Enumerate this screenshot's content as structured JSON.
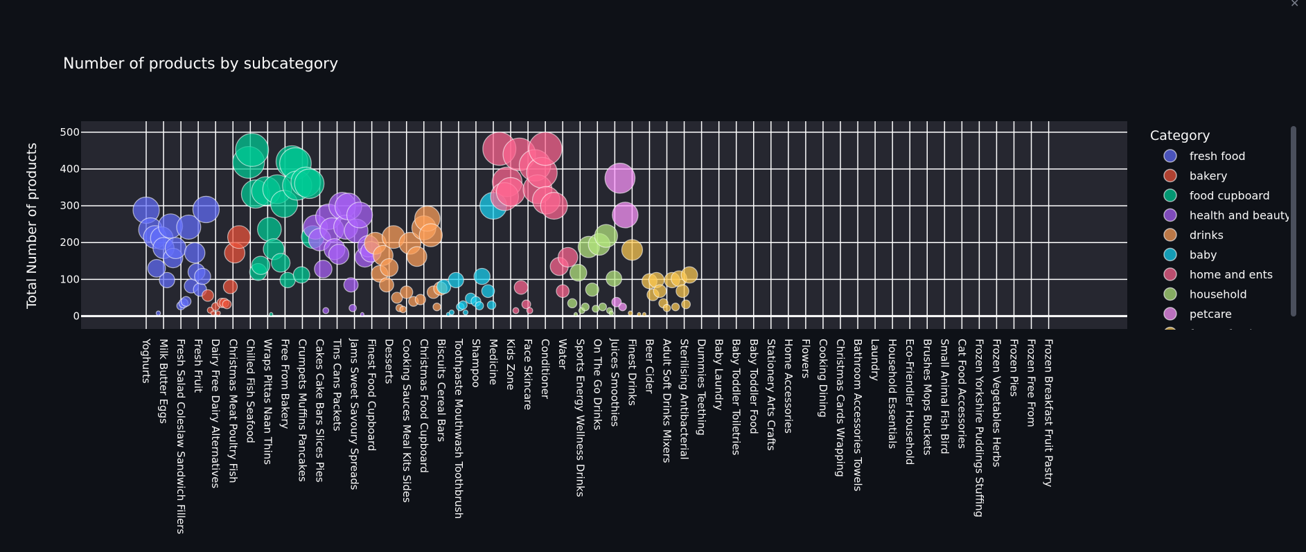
{
  "chart_data": {
    "type": "scatter",
    "title": "Number of products by subcategory",
    "ylabel": "Total Number of products",
    "xlabel": "",
    "ylim": [
      -35,
      530
    ],
    "yticks": [
      0,
      100,
      200,
      300,
      400,
      500
    ],
    "legend_title": "Category",
    "legend_position": "right",
    "grid": true,
    "categories": [
      "Yoghurts",
      "Milk Butter Eggs",
      "Fresh Salad Coleslaw Sandwich Fillers",
      "Fresh Fruit",
      "Dairy Free Dairy Alternatives",
      "Christmas Meat Poultry Fish",
      "Chilled Fish Seafood",
      "Wraps Pittas Naan Thins",
      "Free From Bakery",
      "Crumpets Muffins Pancakes",
      "Cakes Cake Bars Slices Pies",
      "Tins Cans Packets",
      "Jams Sweet Savoury Spreads",
      "Finest Food Cupboard",
      "Desserts",
      "Cooking Sauces Meal Kits Sides",
      "Christmas Food Cupboard",
      "Biscuits Cereal Bars",
      "Toothpaste Mouthwash Toothbrush",
      "Shampoo",
      "Medicine",
      "Kids Zone",
      "Face Skincare",
      "Conditioner",
      "Water",
      "Sports Energy Wellness Drinks",
      "On The Go Drinks",
      "Juices Smoothies",
      "Finest Drinks",
      "Beer Cider",
      "Adult Soft Drinks Mixers",
      "Sterilising Antibacterial",
      "Dummies Teething",
      "Baby Laundry",
      "Baby Toddler Toiletries",
      "Baby Toddler Food",
      "Stationery Arts Crafts",
      "Home Accessories",
      "Flowers",
      "Cooking Dining",
      "Christmas Cards Wrapping",
      "Bathroom Accessories Towels",
      "Laundry",
      "Household Essentials",
      "Eco-Friendler Household",
      "Brushes Mops Buckets",
      "Small Animal Fish Bird",
      "Cat Food Accessories",
      "Frozen Yorkshire Puddings Stuffing",
      "Frozen Vegetables Herbs",
      "Frozen Pies",
      "Frozen Free From",
      "Frozen Breakfast Fruit Pastry"
    ],
    "series": [
      {
        "name": "fresh food",
        "color": "#636efa",
        "points": [
          [
            0,
            288
          ],
          [
            0.25,
            235
          ],
          [
            0.5,
            215
          ],
          [
            0.7,
            8
          ],
          [
            0.9,
            212
          ],
          [
            1.0,
            185
          ],
          [
            1.2,
            98
          ],
          [
            1.4,
            245
          ],
          [
            1.55,
            158
          ],
          [
            1.7,
            185
          ],
          [
            2.0,
            28
          ],
          [
            2.15,
            35
          ],
          [
            2.3,
            40
          ],
          [
            2.45,
            242
          ],
          [
            2.6,
            82
          ],
          [
            2.8,
            172
          ],
          [
            2.9,
            120
          ],
          [
            3.1,
            72
          ],
          [
            3.25,
            108
          ],
          [
            3.45,
            290
          ],
          [
            0.6,
            130
          ]
        ]
      },
      {
        "name": "bakery",
        "color": "#ef553b",
        "points": [
          [
            3.55,
            56
          ],
          [
            3.7,
            16
          ],
          [
            3.85,
            8
          ],
          [
            4.0,
            26
          ],
          [
            4.15,
            8
          ],
          [
            4.35,
            36
          ],
          [
            4.5,
            36
          ],
          [
            4.65,
            32
          ],
          [
            4.85,
            80
          ],
          [
            5.1,
            172
          ],
          [
            5.35,
            215
          ]
        ]
      },
      {
        "name": "food cupboard",
        "color": "#00cc96",
        "points": [
          [
            5.9,
            418
          ],
          [
            6.1,
            452
          ],
          [
            6.3,
            332
          ],
          [
            6.45,
            120
          ],
          [
            6.6,
            138
          ],
          [
            6.9,
            340
          ],
          [
            7.1,
            236
          ],
          [
            7.2,
            5
          ],
          [
            7.35,
            182
          ],
          [
            7.55,
            345
          ],
          [
            7.75,
            145
          ],
          [
            7.95,
            305
          ],
          [
            8.15,
            98
          ],
          [
            8.4,
            420
          ],
          [
            8.6,
            415
          ],
          [
            8.7,
            355
          ],
          [
            8.95,
            112
          ],
          [
            9.2,
            365
          ],
          [
            9.4,
            360
          ],
          [
            9.6,
            215
          ]
        ]
      },
      {
        "name": "health and beauty",
        "color": "#ab63fa",
        "points": [
          [
            9.75,
            242
          ],
          [
            10.0,
            208
          ],
          [
            10.2,
            128
          ],
          [
            10.35,
            15
          ],
          [
            10.5,
            270
          ],
          [
            10.7,
            235
          ],
          [
            10.85,
            182
          ],
          [
            11.1,
            168
          ],
          [
            11.3,
            300
          ],
          [
            11.5,
            242
          ],
          [
            11.65,
            298
          ],
          [
            11.8,
            85
          ],
          [
            11.9,
            22
          ],
          [
            12.1,
            232
          ],
          [
            12.3,
            275
          ],
          [
            12.45,
            5
          ],
          [
            12.6,
            160
          ],
          [
            12.8,
            190
          ],
          [
            12.95,
            175
          ]
        ]
      },
      {
        "name": "drinks",
        "color": "#ffa15a",
        "points": [
          [
            13.2,
            198
          ],
          [
            13.45,
            115
          ],
          [
            13.65,
            165
          ],
          [
            13.85,
            85
          ],
          [
            14.0,
            132
          ],
          [
            14.25,
            215
          ],
          [
            14.45,
            50
          ],
          [
            14.6,
            22
          ],
          [
            14.8,
            18
          ],
          [
            15.0,
            65
          ],
          [
            15.2,
            198
          ],
          [
            15.4,
            40
          ],
          [
            15.6,
            162
          ],
          [
            15.8,
            45
          ],
          [
            16.0,
            240
          ],
          [
            16.2,
            265
          ],
          [
            16.4,
            220
          ],
          [
            16.55,
            65
          ],
          [
            16.75,
            25
          ],
          [
            16.95,
            75
          ]
        ]
      },
      {
        "name": "baby",
        "color": "#19d3f3",
        "points": [
          [
            17.15,
            80
          ],
          [
            17.4,
            5
          ],
          [
            17.6,
            10
          ],
          [
            17.85,
            98
          ],
          [
            18.1,
            25
          ],
          [
            18.25,
            30
          ],
          [
            18.4,
            10
          ],
          [
            18.7,
            48
          ],
          [
            19.0,
            40
          ],
          [
            19.2,
            28
          ],
          [
            19.35,
            108
          ],
          [
            19.7,
            68
          ],
          [
            19.9,
            30
          ],
          [
            20.0,
            300
          ]
        ]
      },
      {
        "name": "home and ents",
        "color": "#ff6692",
        "points": [
          [
            20.35,
            455
          ],
          [
            20.8,
            365
          ],
          [
            20.65,
            325
          ],
          [
            21.0,
            338
          ],
          [
            21.3,
            15
          ],
          [
            21.6,
            78
          ],
          [
            21.5,
            440
          ],
          [
            21.9,
            32
          ],
          [
            22.1,
            15
          ],
          [
            22.4,
            410
          ],
          [
            22.55,
            345
          ],
          [
            22.8,
            390
          ],
          [
            23.0,
            455
          ],
          [
            23.05,
            315
          ],
          [
            23.5,
            300
          ],
          [
            23.8,
            135
          ],
          [
            24.0,
            68
          ],
          [
            24.3,
            160
          ]
        ]
      },
      {
        "name": "household",
        "color": "#b6e880",
        "points": [
          [
            24.55,
            35
          ],
          [
            24.75,
            5
          ],
          [
            24.9,
            118
          ],
          [
            25.1,
            15
          ],
          [
            25.3,
            25
          ],
          [
            25.5,
            188
          ],
          [
            25.7,
            72
          ],
          [
            25.9,
            20
          ],
          [
            26.1,
            195
          ],
          [
            26.3,
            25
          ],
          [
            26.5,
            218
          ],
          [
            26.7,
            15
          ],
          [
            26.8,
            8
          ],
          [
            26.95,
            102
          ]
        ]
      },
      {
        "name": "petcare",
        "color": "#ff97ff",
        "points": [
          [
            27.1,
            38
          ],
          [
            27.3,
            375
          ],
          [
            27.45,
            25
          ],
          [
            27.6,
            275
          ]
        ]
      },
      {
        "name": "frozen food",
        "color": "#fecb52",
        "points": [
          [
            27.9,
            8
          ],
          [
            28.0,
            180
          ],
          [
            28.4,
            5
          ],
          [
            28.7,
            5
          ],
          [
            29.0,
            95
          ],
          [
            29.2,
            58
          ],
          [
            29.4,
            98
          ],
          [
            29.6,
            68
          ],
          [
            29.8,
            35
          ],
          [
            30.0,
            22
          ],
          [
            30.3,
            98
          ],
          [
            30.5,
            25
          ],
          [
            30.7,
            102
          ],
          [
            30.9,
            68
          ],
          [
            31.1,
            32
          ],
          [
            31.3,
            112
          ]
        ]
      }
    ]
  }
}
